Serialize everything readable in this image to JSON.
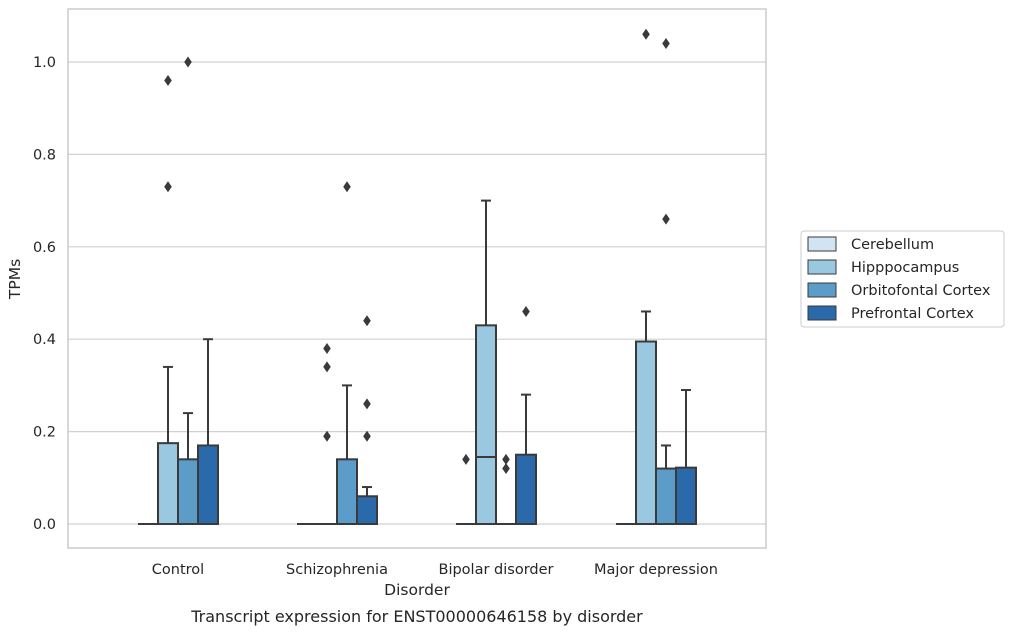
{
  "chart_data": {
    "type": "box",
    "title": "",
    "caption": "Transcript expression for ENST00000646158 by disorder",
    "xlabel": "Disorder",
    "ylabel": "TPMs",
    "ylim": [
      -0.05,
      1.12
    ],
    "yticks": [
      0.0,
      0.2,
      0.4,
      0.6,
      0.8,
      1.0
    ],
    "ytick_labels": [
      "0.0",
      "0.2",
      "0.4",
      "0.6",
      "0.8",
      "1.0"
    ],
    "grid": "horizontal",
    "legend_position": "right",
    "categories": [
      "Control",
      "Schizophrenia",
      "Bipolar disorder",
      "Major depression"
    ],
    "series": [
      {
        "name": "Cerebellum",
        "color": "#d2e3f3",
        "boxes": [
          {
            "q1": 0,
            "median": 0,
            "q3": 0,
            "whisker_low": 0,
            "whisker_high": 0,
            "outliers": []
          },
          {
            "q1": 0,
            "median": 0,
            "q3": 0,
            "whisker_low": 0,
            "whisker_high": 0,
            "outliers": []
          },
          {
            "q1": 0,
            "median": 0,
            "q3": 0,
            "whisker_low": 0,
            "whisker_high": 0,
            "outliers": [
              0.14
            ]
          },
          {
            "q1": 0,
            "median": 0,
            "q3": 0,
            "whisker_low": 0,
            "whisker_high": 0,
            "outliers": []
          }
        ]
      },
      {
        "name": "Hipppocampus",
        "color": "#9ac8e0",
        "boxes": [
          {
            "q1": 0,
            "median": 0,
            "q3": 0.175,
            "whisker_low": 0,
            "whisker_high": 0.34,
            "outliers": [
              0.73,
              0.96
            ]
          },
          {
            "q1": 0,
            "median": 0,
            "q3": 0,
            "whisker_low": 0,
            "whisker_high": 0,
            "outliers": [
              0.19,
              0.34,
              0.38
            ]
          },
          {
            "q1": 0,
            "median": 0.145,
            "q3": 0.43,
            "whisker_low": 0,
            "whisker_high": 0.7,
            "outliers": []
          },
          {
            "q1": 0,
            "median": 0,
            "q3": 0.395,
            "whisker_low": 0,
            "whisker_high": 0.46,
            "outliers": [
              1.06
            ]
          }
        ]
      },
      {
        "name": "Orbitofontal Cortex",
        "color": "#5b9cc9",
        "boxes": [
          {
            "q1": 0,
            "median": 0,
            "q3": 0.14,
            "whisker_low": 0,
            "whisker_high": 0.24,
            "outliers": [
              1.0
            ]
          },
          {
            "q1": 0,
            "median": 0,
            "q3": 0.14,
            "whisker_low": 0,
            "whisker_high": 0.3,
            "outliers": [
              0.73
            ]
          },
          {
            "q1": 0,
            "median": 0,
            "q3": 0,
            "whisker_low": 0,
            "whisker_high": 0,
            "outliers": [
              0.12,
              0.14
            ]
          },
          {
            "q1": 0,
            "median": 0,
            "q3": 0.12,
            "whisker_low": 0,
            "whisker_high": 0.17,
            "outliers": [
              1.04,
              0.66
            ]
          }
        ]
      },
      {
        "name": "Prefrontal Cortex",
        "color": "#2a6aab",
        "boxes": [
          {
            "q1": 0,
            "median": 0,
            "q3": 0.17,
            "whisker_low": 0,
            "whisker_high": 0.4,
            "outliers": []
          },
          {
            "q1": 0,
            "median": 0,
            "q3": 0.06,
            "whisker_low": 0,
            "whisker_high": 0.08,
            "outliers": [
              0.19,
              0.26,
              0.44
            ]
          },
          {
            "q1": 0,
            "median": 0,
            "q3": 0.15,
            "whisker_low": 0,
            "whisker_high": 0.28,
            "outliers": [
              0.46
            ]
          },
          {
            "q1": 0,
            "median": 0,
            "q3": 0.122,
            "whisker_low": 0,
            "whisker_high": 0.29,
            "outliers": []
          }
        ]
      }
    ]
  }
}
